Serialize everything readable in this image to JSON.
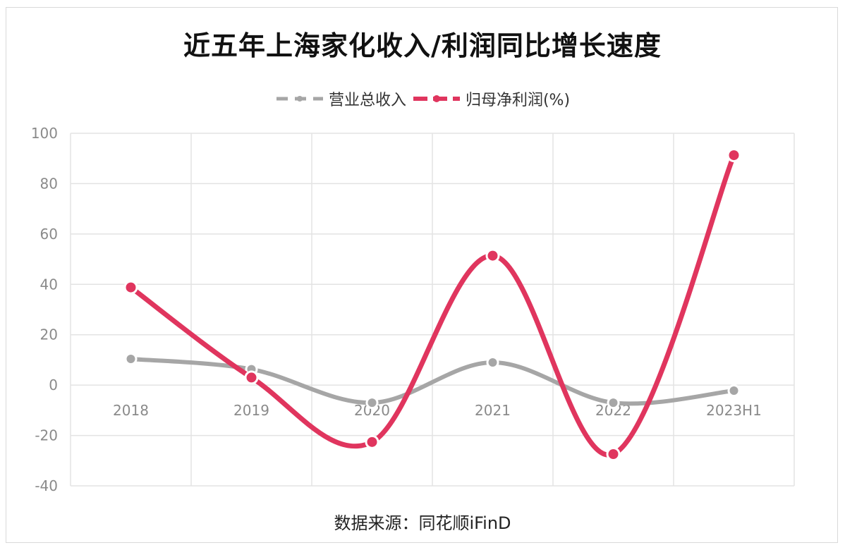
{
  "chart_data": {
    "type": "line",
    "title": "近五年上海家化收入/利润同比增长速度",
    "categories": [
      "2018",
      "2019",
      "2020",
      "2021",
      "2022",
      "2023H1"
    ],
    "series": [
      {
        "name": "营业总收入",
        "color": "#a6a6a6",
        "values": [
          10.4,
          6.3,
          -7.0,
          9.0,
          -7.0,
          -2.2
        ]
      },
      {
        "name": "归母净利润(%)",
        "color": "#e0355e",
        "values": [
          38.8,
          3.0,
          -22.6,
          51.4,
          -27.4,
          91.3
        ]
      }
    ],
    "ylim": [
      -40,
      100
    ],
    "yticks": [
      100,
      80,
      60,
      40,
      20,
      0,
      -20,
      -40
    ],
    "smooth": true,
    "grid": true,
    "legend_position": "top",
    "source": "数据来源：同花顺iFinD"
  }
}
